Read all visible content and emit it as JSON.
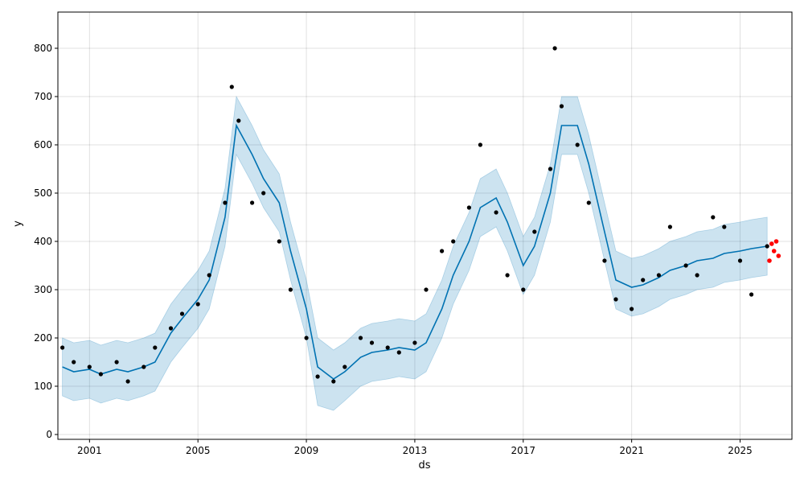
{
  "chart_data": {
    "type": "line",
    "xlabel": "ds",
    "ylabel": "y",
    "xlim": [
      "1999-11-01",
      "2026-11-30"
    ],
    "ylim": [
      -10,
      875
    ],
    "x_ticks": [
      "2001",
      "2005",
      "2009",
      "2013",
      "2017",
      "2021",
      "2025"
    ],
    "y_ticks": [
      0,
      100,
      200,
      300,
      400,
      500,
      600,
      700,
      800
    ],
    "grid": true,
    "colors": {
      "observed": "#000000",
      "forecast_line": "#0072B2",
      "uncertainty_band": "#0072B2",
      "test_points": "#ff0000"
    },
    "series": [
      {
        "role": "forecast",
        "x": [
          "2000-01",
          "2000-06",
          "2001-01",
          "2001-06",
          "2002-01",
          "2002-06",
          "2003-01",
          "2003-06",
          "2004-01",
          "2004-06",
          "2005-01",
          "2005-06",
          "2006-01",
          "2006-06",
          "2007-01",
          "2007-06",
          "2008-01",
          "2008-06",
          "2009-01",
          "2009-06",
          "2010-01",
          "2010-06",
          "2011-01",
          "2011-06",
          "2012-01",
          "2012-06",
          "2013-01",
          "2013-06",
          "2014-01",
          "2014-06",
          "2015-01",
          "2015-06",
          "2016-01",
          "2016-06",
          "2017-01",
          "2017-06",
          "2018-01",
          "2018-06",
          "2019-01",
          "2019-06",
          "2020-01",
          "2020-06",
          "2021-01",
          "2021-06",
          "2022-01",
          "2022-06",
          "2023-01",
          "2023-06",
          "2024-01",
          "2024-06",
          "2025-01",
          "2025-06",
          "2026-01"
        ],
        "y": [
          140,
          130,
          135,
          125,
          135,
          130,
          140,
          150,
          210,
          240,
          280,
          320,
          450,
          640,
          580,
          530,
          480,
          380,
          260,
          140,
          115,
          130,
          160,
          170,
          175,
          180,
          175,
          190,
          260,
          330,
          400,
          470,
          490,
          440,
          350,
          390,
          500,
          640,
          640,
          560,
          420,
          320,
          305,
          310,
          325,
          340,
          350,
          360,
          365,
          375,
          380,
          385,
          390
        ],
        "lower": [
          80,
          70,
          75,
          65,
          75,
          70,
          80,
          90,
          150,
          180,
          220,
          260,
          390,
          580,
          520,
          470,
          420,
          320,
          200,
          60,
          50,
          70,
          100,
          110,
          115,
          120,
          115,
          130,
          200,
          270,
          340,
          410,
          430,
          380,
          290,
          330,
          440,
          580,
          580,
          500,
          360,
          260,
          245,
          250,
          265,
          280,
          290,
          300,
          305,
          315,
          320,
          325,
          330
        ],
        "upper": [
          200,
          190,
          195,
          185,
          195,
          190,
          200,
          210,
          270,
          300,
          340,
          380,
          510,
          700,
          640,
          590,
          540,
          440,
          320,
          200,
          175,
          190,
          220,
          230,
          235,
          240,
          235,
          250,
          320,
          390,
          460,
          530,
          550,
          500,
          410,
          450,
          560,
          700,
          700,
          620,
          480,
          380,
          365,
          370,
          385,
          400,
          410,
          420,
          425,
          435,
          440,
          445,
          450
        ]
      },
      {
        "role": "observed",
        "x": [
          "2000-01",
          "2000-06",
          "2001-01",
          "2001-06",
          "2002-01",
          "2002-06",
          "2003-01",
          "2003-06",
          "2004-01",
          "2004-06",
          "2005-01",
          "2005-06",
          "2006-01",
          "2006-04",
          "2006-07",
          "2007-01",
          "2007-06",
          "2008-01",
          "2008-06",
          "2009-01",
          "2009-06",
          "2010-01",
          "2010-06",
          "2011-01",
          "2011-06",
          "2012-01",
          "2012-06",
          "2013-01",
          "2013-06",
          "2014-01",
          "2014-06",
          "2015-01",
          "2015-06",
          "2016-01",
          "2016-06",
          "2017-01",
          "2017-06",
          "2018-01",
          "2018-03",
          "2018-06",
          "2019-01",
          "2019-06",
          "2020-01",
          "2020-06",
          "2021-01",
          "2021-06",
          "2022-01",
          "2022-06",
          "2023-01",
          "2023-06",
          "2024-01",
          "2024-06",
          "2025-01",
          "2025-06",
          "2026-01"
        ],
        "y": [
          180,
          150,
          140,
          125,
          150,
          110,
          140,
          180,
          220,
          250,
          270,
          330,
          480,
          720,
          650,
          480,
          500,
          400,
          300,
          200,
          120,
          110,
          140,
          200,
          190,
          180,
          170,
          190,
          300,
          380,
          400,
          470,
          600,
          460,
          330,
          300,
          420,
          550,
          800,
          680,
          600,
          480,
          360,
          280,
          260,
          320,
          330,
          430,
          350,
          330,
          450,
          430,
          360,
          290,
          390
        ]
      },
      {
        "role": "test",
        "x": [
          "2026-02",
          "2026-03",
          "2026-04",
          "2026-05",
          "2026-06"
        ],
        "y": [
          360,
          395,
          380,
          400,
          370
        ]
      }
    ]
  }
}
